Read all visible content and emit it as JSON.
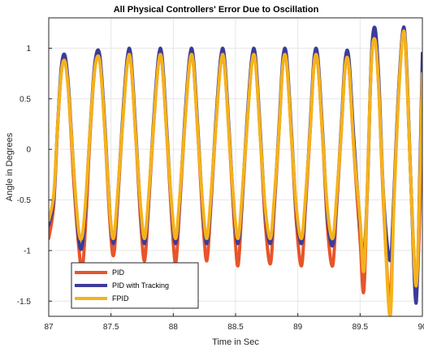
{
  "chart_data": {
    "type": "line",
    "title": "All Physical Controllers' Error Due to Oscillation",
    "xlabel": "Time in Sec",
    "ylabel": "Angle in Degrees",
    "xlim": [
      87,
      90
    ],
    "ylim": [
      -1.65,
      1.3
    ],
    "xticks": [
      87,
      87.5,
      88,
      88.5,
      89,
      89.5,
      90
    ],
    "xtick_labels": [
      "87",
      "87.5",
      "88",
      "88.5",
      "89",
      "89.5",
      "90"
    ],
    "yticks": [
      -1.5,
      -1,
      -0.5,
      0,
      0.5,
      1
    ],
    "ytick_labels": [
      "-1.5",
      "-1",
      "-0.5",
      "0",
      "0.5",
      "1"
    ],
    "grid": true,
    "legend_position": "bottom-left",
    "series": [
      {
        "name": "PID",
        "color": "#e8542a",
        "points": [
          [
            87.0,
            -0.88
          ],
          [
            87.04,
            -0.55
          ],
          [
            87.07,
            0.2
          ],
          [
            87.1,
            0.75
          ],
          [
            87.13,
            0.88
          ],
          [
            87.16,
            0.55
          ],
          [
            87.2,
            -0.3
          ],
          [
            87.24,
            -0.95
          ],
          [
            87.27,
            -1.18
          ],
          [
            87.3,
            -0.65
          ],
          [
            87.33,
            0.1
          ],
          [
            87.37,
            0.8
          ],
          [
            87.41,
            0.88
          ],
          [
            87.45,
            0.2
          ],
          [
            87.49,
            -0.7
          ],
          [
            87.52,
            -1.05
          ],
          [
            87.55,
            -0.6
          ],
          [
            87.59,
            0.2
          ],
          [
            87.63,
            0.85
          ],
          [
            87.66,
            0.86
          ],
          [
            87.7,
            0.1
          ],
          [
            87.74,
            -0.75
          ],
          [
            87.77,
            -1.1
          ],
          [
            87.8,
            -0.6
          ],
          [
            87.84,
            0.2
          ],
          [
            87.88,
            0.85
          ],
          [
            87.91,
            0.85
          ],
          [
            87.95,
            0.1
          ],
          [
            87.99,
            -0.75
          ],
          [
            88.02,
            -1.12
          ],
          [
            88.05,
            -0.6
          ],
          [
            88.09,
            0.2
          ],
          [
            88.13,
            0.85
          ],
          [
            88.16,
            0.86
          ],
          [
            88.2,
            0.1
          ],
          [
            88.24,
            -0.75
          ],
          [
            88.27,
            -1.1
          ],
          [
            88.3,
            -0.6
          ],
          [
            88.34,
            0.2
          ],
          [
            88.38,
            0.85
          ],
          [
            88.41,
            0.85
          ],
          [
            88.45,
            0.1
          ],
          [
            88.49,
            -0.75
          ],
          [
            88.52,
            -1.15
          ],
          [
            88.55,
            -0.6
          ],
          [
            88.59,
            0.2
          ],
          [
            88.63,
            0.85
          ],
          [
            88.66,
            0.87
          ],
          [
            88.7,
            0.1
          ],
          [
            88.74,
            -0.75
          ],
          [
            88.78,
            -1.13
          ],
          [
            88.81,
            -0.6
          ],
          [
            88.85,
            0.2
          ],
          [
            88.88,
            0.85
          ],
          [
            88.91,
            0.86
          ],
          [
            88.95,
            0.1
          ],
          [
            88.99,
            -0.75
          ],
          [
            89.03,
            -1.15
          ],
          [
            89.06,
            -0.6
          ],
          [
            89.1,
            0.2
          ],
          [
            89.13,
            0.85
          ],
          [
            89.16,
            0.85
          ],
          [
            89.2,
            0.1
          ],
          [
            89.24,
            -0.8
          ],
          [
            89.28,
            -1.15
          ],
          [
            89.31,
            -0.6
          ],
          [
            89.35,
            0.2
          ],
          [
            89.38,
            0.82
          ],
          [
            89.41,
            0.82
          ],
          [
            89.45,
            0.0
          ],
          [
            89.5,
            -0.9
          ],
          [
            89.53,
            -1.4
          ],
          [
            89.56,
            -0.3
          ],
          [
            89.59,
            0.85
          ],
          [
            89.62,
            1.12
          ],
          [
            89.65,
            0.6
          ],
          [
            89.69,
            -0.6
          ],
          [
            89.74,
            -1.5
          ],
          [
            89.77,
            -0.5
          ],
          [
            89.81,
            0.6
          ],
          [
            89.85,
            1.2
          ],
          [
            89.88,
            0.6
          ],
          [
            89.91,
            -0.4
          ],
          [
            89.95,
            -1.38
          ],
          [
            89.98,
            -0.6
          ],
          [
            90.0,
            0.6
          ]
        ]
      },
      {
        "name": "PID with Tracking",
        "color": "#3b3b9a",
        "points": [
          [
            87.0,
            -0.75
          ],
          [
            87.04,
            -0.5
          ],
          [
            87.07,
            0.2
          ],
          [
            87.1,
            0.8
          ],
          [
            87.13,
            0.93
          ],
          [
            87.16,
            0.6
          ],
          [
            87.2,
            -0.2
          ],
          [
            87.24,
            -0.88
          ],
          [
            87.27,
            -0.95
          ],
          [
            87.3,
            -0.5
          ],
          [
            87.33,
            0.15
          ],
          [
            87.37,
            0.85
          ],
          [
            87.41,
            0.93
          ],
          [
            87.45,
            0.25
          ],
          [
            87.49,
            -0.6
          ],
          [
            87.52,
            -0.93
          ],
          [
            87.55,
            -0.55
          ],
          [
            87.59,
            0.25
          ],
          [
            87.63,
            0.9
          ],
          [
            87.66,
            0.92
          ],
          [
            87.7,
            0.15
          ],
          [
            87.74,
            -0.65
          ],
          [
            87.77,
            -0.93
          ],
          [
            87.8,
            -0.55
          ],
          [
            87.84,
            0.25
          ],
          [
            87.88,
            0.9
          ],
          [
            87.91,
            0.92
          ],
          [
            87.95,
            0.15
          ],
          [
            87.99,
            -0.65
          ],
          [
            88.02,
            -0.93
          ],
          [
            88.05,
            -0.55
          ],
          [
            88.09,
            0.25
          ],
          [
            88.13,
            0.9
          ],
          [
            88.16,
            0.92
          ],
          [
            88.2,
            0.15
          ],
          [
            88.24,
            -0.65
          ],
          [
            88.27,
            -0.93
          ],
          [
            88.3,
            -0.55
          ],
          [
            88.34,
            0.25
          ],
          [
            88.38,
            0.9
          ],
          [
            88.41,
            0.92
          ],
          [
            88.45,
            0.15
          ],
          [
            88.49,
            -0.65
          ],
          [
            88.52,
            -0.93
          ],
          [
            88.55,
            -0.55
          ],
          [
            88.59,
            0.25
          ],
          [
            88.63,
            0.9
          ],
          [
            88.66,
            0.92
          ],
          [
            88.7,
            0.15
          ],
          [
            88.74,
            -0.65
          ],
          [
            88.78,
            -0.93
          ],
          [
            88.81,
            -0.55
          ],
          [
            88.85,
            0.25
          ],
          [
            88.88,
            0.9
          ],
          [
            88.91,
            0.92
          ],
          [
            88.95,
            0.15
          ],
          [
            88.99,
            -0.65
          ],
          [
            89.03,
            -0.93
          ],
          [
            89.06,
            -0.55
          ],
          [
            89.1,
            0.25
          ],
          [
            89.13,
            0.9
          ],
          [
            89.16,
            0.92
          ],
          [
            89.2,
            0.15
          ],
          [
            89.24,
            -0.7
          ],
          [
            89.28,
            -0.95
          ],
          [
            89.31,
            -0.55
          ],
          [
            89.35,
            0.25
          ],
          [
            89.38,
            0.88
          ],
          [
            89.41,
            0.9
          ],
          [
            89.45,
            0.1
          ],
          [
            89.5,
            -0.75
          ],
          [
            89.53,
            -1.05
          ],
          [
            89.56,
            -0.35
          ],
          [
            89.59,
            0.9
          ],
          [
            89.62,
            1.2
          ],
          [
            89.65,
            0.7
          ],
          [
            89.69,
            -0.5
          ],
          [
            89.74,
            -1.1
          ],
          [
            89.77,
            -0.5
          ],
          [
            89.81,
            0.6
          ],
          [
            89.85,
            1.21
          ],
          [
            89.88,
            0.65
          ],
          [
            89.91,
            -0.4
          ],
          [
            89.95,
            -1.52
          ],
          [
            89.98,
            -0.2
          ],
          [
            90.0,
            0.95
          ]
        ]
      },
      {
        "name": "FPID",
        "color": "#f5b21b",
        "points": [
          [
            87.0,
            -0.7
          ],
          [
            87.04,
            -0.45
          ],
          [
            87.07,
            0.2
          ],
          [
            87.1,
            0.75
          ],
          [
            87.13,
            0.87
          ],
          [
            87.16,
            0.55
          ],
          [
            87.2,
            -0.2
          ],
          [
            87.24,
            -0.8
          ],
          [
            87.27,
            -0.85
          ],
          [
            87.3,
            -0.45
          ],
          [
            87.33,
            0.15
          ],
          [
            87.37,
            0.8
          ],
          [
            87.41,
            0.87
          ],
          [
            87.45,
            0.2
          ],
          [
            87.49,
            -0.6
          ],
          [
            87.52,
            -0.88
          ],
          [
            87.55,
            -0.5
          ],
          [
            87.59,
            0.2
          ],
          [
            87.63,
            0.84
          ],
          [
            87.66,
            0.86
          ],
          [
            87.7,
            0.1
          ],
          [
            87.74,
            -0.6
          ],
          [
            87.77,
            -0.88
          ],
          [
            87.8,
            -0.5
          ],
          [
            87.84,
            0.2
          ],
          [
            87.88,
            0.84
          ],
          [
            87.91,
            0.86
          ],
          [
            87.95,
            0.1
          ],
          [
            87.99,
            -0.6
          ],
          [
            88.02,
            -0.88
          ],
          [
            88.05,
            -0.5
          ],
          [
            88.09,
            0.2
          ],
          [
            88.13,
            0.84
          ],
          [
            88.16,
            0.86
          ],
          [
            88.2,
            0.1
          ],
          [
            88.24,
            -0.6
          ],
          [
            88.27,
            -0.88
          ],
          [
            88.3,
            -0.5
          ],
          [
            88.34,
            0.2
          ],
          [
            88.38,
            0.84
          ],
          [
            88.41,
            0.86
          ],
          [
            88.45,
            0.1
          ],
          [
            88.49,
            -0.6
          ],
          [
            88.52,
            -0.88
          ],
          [
            88.55,
            -0.5
          ],
          [
            88.59,
            0.2
          ],
          [
            88.63,
            0.84
          ],
          [
            88.66,
            0.86
          ],
          [
            88.7,
            0.1
          ],
          [
            88.74,
            -0.6
          ],
          [
            88.78,
            -0.88
          ],
          [
            88.81,
            -0.5
          ],
          [
            88.85,
            0.2
          ],
          [
            88.88,
            0.84
          ],
          [
            88.91,
            0.86
          ],
          [
            88.95,
            0.1
          ],
          [
            88.99,
            -0.6
          ],
          [
            89.03,
            -0.88
          ],
          [
            89.06,
            -0.5
          ],
          [
            89.1,
            0.2
          ],
          [
            89.13,
            0.84
          ],
          [
            89.16,
            0.86
          ],
          [
            89.2,
            0.1
          ],
          [
            89.24,
            -0.62
          ],
          [
            89.28,
            -0.88
          ],
          [
            89.31,
            -0.5
          ],
          [
            89.35,
            0.2
          ],
          [
            89.38,
            0.82
          ],
          [
            89.41,
            0.82
          ],
          [
            89.45,
            0.0
          ],
          [
            89.5,
            -0.7
          ],
          [
            89.53,
            -1.2
          ],
          [
            89.56,
            -0.3
          ],
          [
            89.59,
            0.85
          ],
          [
            89.62,
            1.08
          ],
          [
            89.65,
            0.6
          ],
          [
            89.69,
            -0.55
          ],
          [
            89.74,
            -1.65
          ],
          [
            89.77,
            -0.6
          ],
          [
            89.81,
            0.55
          ],
          [
            89.85,
            1.17
          ],
          [
            89.88,
            0.6
          ],
          [
            89.91,
            -0.4
          ],
          [
            89.95,
            -1.35
          ],
          [
            89.98,
            -0.3
          ],
          [
            90.0,
            0.75
          ]
        ]
      }
    ]
  }
}
